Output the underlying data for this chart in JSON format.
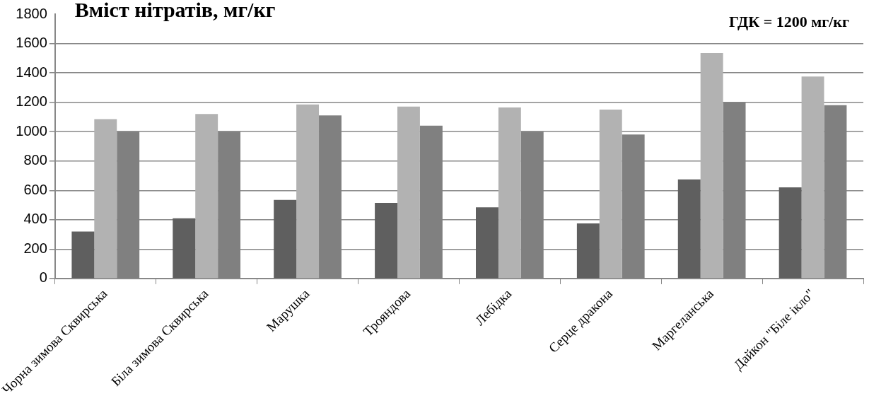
{
  "chart_data": {
    "type": "bar",
    "title": "Вміст нітратів, мг/кг",
    "annotations": [
      "ГДК = 1200 мг/кг"
    ],
    "categories": [
      "Чорна зимова Сквирська",
      "Біла зимова Сквирська",
      "Марушка",
      "Трояндова",
      "Лебідка",
      "Серце дракона",
      "Маргеланська",
      "Дайкон \"Біле ікло\""
    ],
    "series": [
      {
        "color": "#5f5f5f",
        "values": [
          320,
          410,
          535,
          515,
          485,
          375,
          675,
          620
        ]
      },
      {
        "color": "#b2b2b2",
        "values": [
          1085,
          1120,
          1185,
          1170,
          1165,
          1150,
          1535,
          1375
        ]
      },
      {
        "color": "#808080",
        "values": [
          1000,
          1000,
          1110,
          1040,
          1000,
          980,
          1200,
          1180
        ]
      }
    ],
    "ylim": [
      0,
      1800
    ],
    "yticks": [
      0,
      200,
      400,
      600,
      800,
      1000,
      1200,
      1400,
      1600,
      1800
    ],
    "grid": "y",
    "legend": false
  }
}
